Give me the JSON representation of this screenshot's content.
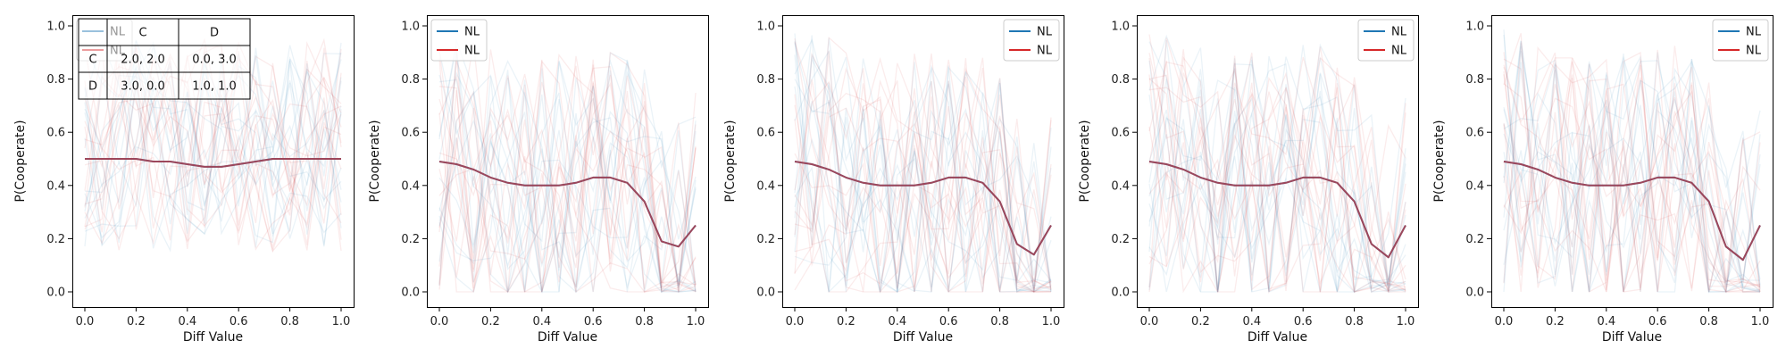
{
  "chart_data": [
    {
      "type": "line",
      "xlabel": "Diff Value",
      "ylabel": "P(Cooperate)",
      "xlim": [
        0.0,
        1.0
      ],
      "ylim": [
        0.0,
        1.0
      ],
      "xticks": [
        "0.0",
        "0.2",
        "0.4",
        "0.6",
        "0.8",
        "1.0"
      ],
      "yticks": [
        "0.0",
        "0.2",
        "0.4",
        "0.6",
        "0.8",
        "1.0"
      ],
      "legend_position": "top-left",
      "series": [
        {
          "name": "NL",
          "color": "#1f77b4",
          "x": [
            0.0,
            0.067,
            0.133,
            0.2,
            0.267,
            0.333,
            0.4,
            0.467,
            0.533,
            0.6,
            0.667,
            0.733,
            0.8,
            0.867,
            0.933,
            1.0
          ],
          "values": [
            0.5,
            0.5,
            0.5,
            0.5,
            0.49,
            0.49,
            0.48,
            0.47,
            0.47,
            0.48,
            0.49,
            0.5,
            0.5,
            0.5,
            0.5,
            0.5
          ]
        },
        {
          "name": "NL",
          "color": "#d62728",
          "x": [
            0.0,
            0.067,
            0.133,
            0.2,
            0.267,
            0.333,
            0.4,
            0.467,
            0.533,
            0.6,
            0.667,
            0.733,
            0.8,
            0.867,
            0.933,
            1.0
          ],
          "values": [
            0.5,
            0.5,
            0.5,
            0.5,
            0.49,
            0.49,
            0.48,
            0.47,
            0.47,
            0.48,
            0.49,
            0.5,
            0.5,
            0.5,
            0.5,
            0.5
          ]
        }
      ],
      "payoff_table": {
        "header": [
          "",
          "C",
          "D"
        ],
        "rows": [
          [
            "C",
            "2.0, 2.0",
            "0.0, 3.0"
          ],
          [
            "D",
            "3.0, 0.0",
            "1.0, 1.0"
          ]
        ]
      }
    },
    {
      "type": "line",
      "xlabel": "Diff Value",
      "ylabel": "P(Cooperate)",
      "xlim": [
        0.0,
        1.0
      ],
      "ylim": [
        0.0,
        1.0
      ],
      "xticks": [
        "0.0",
        "0.2",
        "0.4",
        "0.6",
        "0.8",
        "1.0"
      ],
      "yticks": [
        "0.0",
        "0.2",
        "0.4",
        "0.6",
        "0.8",
        "1.0"
      ],
      "legend_position": "top-left",
      "series": [
        {
          "name": "NL",
          "color": "#1f77b4",
          "x": [
            0.0,
            0.067,
            0.133,
            0.2,
            0.267,
            0.333,
            0.4,
            0.467,
            0.533,
            0.6,
            0.667,
            0.733,
            0.8,
            0.867,
            0.933,
            1.0
          ],
          "values": [
            0.49,
            0.48,
            0.46,
            0.43,
            0.41,
            0.4,
            0.4,
            0.4,
            0.41,
            0.43,
            0.43,
            0.41,
            0.34,
            0.19,
            0.17,
            0.25
          ]
        },
        {
          "name": "NL",
          "color": "#d62728",
          "x": [
            0.0,
            0.067,
            0.133,
            0.2,
            0.267,
            0.333,
            0.4,
            0.467,
            0.533,
            0.6,
            0.667,
            0.733,
            0.8,
            0.867,
            0.933,
            1.0
          ],
          "values": [
            0.49,
            0.48,
            0.46,
            0.43,
            0.41,
            0.4,
            0.4,
            0.4,
            0.41,
            0.43,
            0.43,
            0.41,
            0.34,
            0.19,
            0.17,
            0.25
          ]
        }
      ]
    },
    {
      "type": "line",
      "xlabel": "Diff Value",
      "ylabel": "P(Cooperate)",
      "xlim": [
        0.0,
        1.0
      ],
      "ylim": [
        0.0,
        1.0
      ],
      "xticks": [
        "0.0",
        "0.2",
        "0.4",
        "0.6",
        "0.8",
        "1.0"
      ],
      "yticks": [
        "0.0",
        "0.2",
        "0.4",
        "0.6",
        "0.8",
        "1.0"
      ],
      "legend_position": "top-right",
      "series": [
        {
          "name": "NL",
          "color": "#1f77b4",
          "x": [
            0.0,
            0.067,
            0.133,
            0.2,
            0.267,
            0.333,
            0.4,
            0.467,
            0.533,
            0.6,
            0.667,
            0.733,
            0.8,
            0.867,
            0.933,
            1.0
          ],
          "values": [
            0.49,
            0.48,
            0.46,
            0.43,
            0.41,
            0.4,
            0.4,
            0.4,
            0.41,
            0.43,
            0.43,
            0.41,
            0.34,
            0.18,
            0.14,
            0.25
          ]
        },
        {
          "name": "NL",
          "color": "#d62728",
          "x": [
            0.0,
            0.067,
            0.133,
            0.2,
            0.267,
            0.333,
            0.4,
            0.467,
            0.533,
            0.6,
            0.667,
            0.733,
            0.8,
            0.867,
            0.933,
            1.0
          ],
          "values": [
            0.49,
            0.48,
            0.46,
            0.43,
            0.41,
            0.4,
            0.4,
            0.4,
            0.41,
            0.43,
            0.43,
            0.41,
            0.34,
            0.18,
            0.14,
            0.25
          ]
        }
      ]
    },
    {
      "type": "line",
      "xlabel": "Diff Value",
      "ylabel": "P(Cooperate)",
      "xlim": [
        0.0,
        1.0
      ],
      "ylim": [
        0.0,
        1.0
      ],
      "xticks": [
        "0.0",
        "0.2",
        "0.4",
        "0.6",
        "0.8",
        "1.0"
      ],
      "yticks": [
        "0.0",
        "0.2",
        "0.4",
        "0.6",
        "0.8",
        "1.0"
      ],
      "legend_position": "top-right",
      "series": [
        {
          "name": "NL",
          "color": "#1f77b4",
          "x": [
            0.0,
            0.067,
            0.133,
            0.2,
            0.267,
            0.333,
            0.4,
            0.467,
            0.533,
            0.6,
            0.667,
            0.733,
            0.8,
            0.867,
            0.933,
            1.0
          ],
          "values": [
            0.49,
            0.48,
            0.46,
            0.43,
            0.41,
            0.4,
            0.4,
            0.4,
            0.41,
            0.43,
            0.43,
            0.41,
            0.34,
            0.18,
            0.13,
            0.25
          ]
        },
        {
          "name": "NL",
          "color": "#d62728",
          "x": [
            0.0,
            0.067,
            0.133,
            0.2,
            0.267,
            0.333,
            0.4,
            0.467,
            0.533,
            0.6,
            0.667,
            0.733,
            0.8,
            0.867,
            0.933,
            1.0
          ],
          "values": [
            0.49,
            0.48,
            0.46,
            0.43,
            0.41,
            0.4,
            0.4,
            0.4,
            0.41,
            0.43,
            0.43,
            0.41,
            0.34,
            0.18,
            0.13,
            0.25
          ]
        }
      ]
    },
    {
      "type": "line",
      "xlabel": "Diff Value",
      "ylabel": "P(Cooperate)",
      "xlim": [
        0.0,
        1.0
      ],
      "ylim": [
        0.0,
        1.0
      ],
      "xticks": [
        "0.0",
        "0.2",
        "0.4",
        "0.6",
        "0.8",
        "1.0"
      ],
      "yticks": [
        "0.0",
        "0.2",
        "0.4",
        "0.6",
        "0.8",
        "1.0"
      ],
      "legend_position": "top-right",
      "series": [
        {
          "name": "NL",
          "color": "#1f77b4",
          "x": [
            0.0,
            0.067,
            0.133,
            0.2,
            0.267,
            0.333,
            0.4,
            0.467,
            0.533,
            0.6,
            0.667,
            0.733,
            0.8,
            0.867,
            0.933,
            1.0
          ],
          "values": [
            0.49,
            0.48,
            0.46,
            0.43,
            0.41,
            0.4,
            0.4,
            0.4,
            0.41,
            0.43,
            0.43,
            0.41,
            0.34,
            0.17,
            0.12,
            0.25
          ]
        },
        {
          "name": "NL",
          "color": "#d62728",
          "x": [
            0.0,
            0.067,
            0.133,
            0.2,
            0.267,
            0.333,
            0.4,
            0.467,
            0.533,
            0.6,
            0.667,
            0.733,
            0.8,
            0.867,
            0.933,
            1.0
          ],
          "values": [
            0.49,
            0.48,
            0.46,
            0.43,
            0.41,
            0.4,
            0.4,
            0.4,
            0.41,
            0.43,
            0.43,
            0.41,
            0.34,
            0.17,
            0.12,
            0.25
          ]
        }
      ]
    }
  ]
}
